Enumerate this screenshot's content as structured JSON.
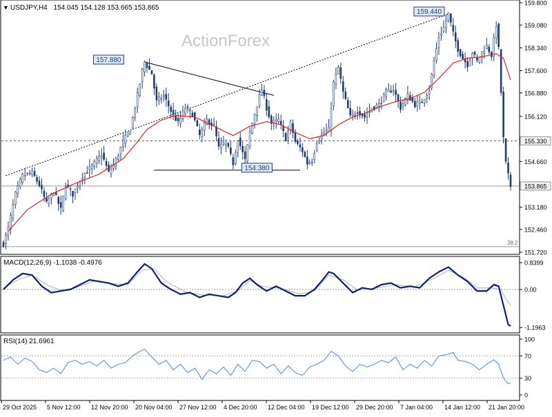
{
  "header": {
    "symbol": "USDJPY,H4",
    "ohlc": "154.045 154.128 153.665 153.865",
    "watermark": "ActionForex"
  },
  "colors": {
    "candles": "#1f3b70",
    "sma": "#e0202a",
    "trendline": "#000000",
    "macd": "#0a1e7a",
    "signal": "#b0b0b0",
    "rsi": "#4a88d8",
    "box_border": "#1f3b70",
    "box_fill": "#dfe8ff"
  },
  "chart_data": [
    {
      "name": "price",
      "type": "candlestick",
      "ylim": [
        151.72,
        159.8
      ],
      "y_ticks": [
        "159.800",
        "159.080",
        "158.340",
        "157.600",
        "156.880",
        "156.120",
        "155.400",
        "154.660",
        "153.920",
        "153.180",
        "152.460",
        "151.720"
      ],
      "x_ticks": [
        "29 Oct 2025",
        "5 Nov 12:00",
        "12 Nov 20:00",
        "20 Nov 04:00",
        "27 Nov 12:00",
        "4 Dec 20:00",
        "12 Dec 04:00",
        "19 Dec 12:00",
        "29 Dec 20:00",
        "7 Jan 04:00",
        "14 Jan 12:00",
        "21 Jan 20:00"
      ],
      "price_path": [
        [
          0,
          152.0
        ],
        [
          2,
          152.5
        ],
        [
          5,
          153.6
        ],
        [
          8,
          154.2
        ],
        [
          12,
          154.3
        ],
        [
          15,
          153.9
        ],
        [
          18,
          153.3
        ],
        [
          21,
          153.7
        ],
        [
          24,
          153.1
        ],
        [
          26,
          153.9
        ],
        [
          29,
          153.6
        ],
        [
          33,
          154.2
        ],
        [
          37,
          154.5
        ],
        [
          41,
          154.9
        ],
        [
          44,
          154.3
        ],
        [
          47,
          154.7
        ],
        [
          50,
          155.3
        ],
        [
          53,
          155.7
        ],
        [
          56,
          156.8
        ],
        [
          58,
          157.6
        ],
        [
          59,
          157.88
        ],
        [
          62,
          157.5
        ],
        [
          64,
          156.6
        ],
        [
          67,
          156.8
        ],
        [
          70,
          156.3
        ],
        [
          73,
          155.9
        ],
        [
          76,
          156.4
        ],
        [
          79,
          156.2
        ],
        [
          82,
          155.5
        ],
        [
          85,
          156.0
        ],
        [
          88,
          155.8
        ],
        [
          90,
          155.1
        ],
        [
          93,
          155.3
        ],
        [
          96,
          154.6
        ],
        [
          98,
          155.4
        ],
        [
          101,
          154.7
        ],
        [
          103,
          155.6
        ],
        [
          106,
          156.5
        ],
        [
          108,
          157.0
        ],
        [
          110,
          156.4
        ],
        [
          112,
          155.9
        ],
        [
          115,
          156.0
        ],
        [
          118,
          155.4
        ],
        [
          120,
          155.9
        ],
        [
          122,
          155.3
        ],
        [
          125,
          155.0
        ],
        [
          127,
          154.6
        ],
        [
          129,
          154.7
        ],
        [
          131,
          155.3
        ],
        [
          134,
          155.6
        ],
        [
          136,
          155.7
        ],
        [
          138,
          157.2
        ],
        [
          140,
          157.7
        ],
        [
          142,
          156.9
        ],
        [
          145,
          156.1
        ],
        [
          148,
          156.3
        ],
        [
          151,
          156.1
        ],
        [
          154,
          156.4
        ],
        [
          157,
          156.5
        ],
        [
          160,
          156.9
        ],
        [
          163,
          157.0
        ],
        [
          166,
          156.4
        ],
        [
          169,
          156.8
        ],
        [
          172,
          156.5
        ],
        [
          175,
          156.6
        ],
        [
          178,
          157.0
        ],
        [
          180,
          157.9
        ],
        [
          182,
          158.7
        ],
        [
          184,
          159.0
        ],
        [
          186,
          159.44
        ],
        [
          188,
          158.8
        ],
        [
          190,
          158.3
        ],
        [
          192,
          158.0
        ],
        [
          194,
          157.8
        ],
        [
          196,
          158.2
        ],
        [
          198,
          157.9
        ],
        [
          200,
          158.2
        ],
        [
          202,
          158.4
        ],
        [
          204,
          158.1
        ],
        [
          206,
          159.1
        ],
        [
          207,
          158.3
        ],
        [
          208,
          156.9
        ],
        [
          209,
          155.4
        ],
        [
          210,
          154.6
        ],
        [
          211,
          154.2
        ],
        [
          212,
          153.865
        ]
      ],
      "sma_path": [
        [
          2,
          152.4
        ],
        [
          10,
          153.1
        ],
        [
          20,
          153.6
        ],
        [
          30,
          153.95
        ],
        [
          40,
          154.25
        ],
        [
          50,
          154.75
        ],
        [
          55,
          155.2
        ],
        [
          60,
          155.7
        ],
        [
          66,
          156.0
        ],
        [
          72,
          156.15
        ],
        [
          80,
          156.1
        ],
        [
          88,
          155.8
        ],
        [
          96,
          155.5
        ],
        [
          103,
          155.8
        ],
        [
          110,
          155.95
        ],
        [
          116,
          155.85
        ],
        [
          122,
          155.6
        ],
        [
          128,
          155.4
        ],
        [
          134,
          155.5
        ],
        [
          140,
          155.85
        ],
        [
          146,
          156.1
        ],
        [
          152,
          156.25
        ],
        [
          158,
          156.45
        ],
        [
          164,
          156.6
        ],
        [
          170,
          156.7
        ],
        [
          176,
          156.9
        ],
        [
          182,
          157.35
        ],
        [
          188,
          157.85
        ],
        [
          194,
          158.0
        ],
        [
          200,
          158.05
        ],
        [
          206,
          158.15
        ],
        [
          209,
          158.0
        ],
        [
          212,
          157.3
        ]
      ],
      "lines": [
        {
          "name": "rising-channel-line",
          "style": "dotted",
          "from": [
            1,
            154.2
          ],
          "to": [
            186,
            159.44
          ]
        },
        {
          "name": "falling-trendline",
          "style": "solid",
          "from": [
            59,
            157.88
          ],
          "to": [
            113,
            156.8
          ]
        },
        {
          "name": "support-line",
          "style": "solid",
          "from": [
            63,
            154.38
          ],
          "to": [
            124,
            154.38
          ]
        },
        {
          "name": "level-155330",
          "style": "dashed",
          "from": [
            0,
            155.33
          ],
          "to": [
            212,
            155.33
          ]
        },
        {
          "name": "level-153865",
          "style": "solid-gray",
          "from": [
            0,
            153.865
          ],
          "to": [
            212,
            153.865
          ]
        },
        {
          "name": "level-38-2",
          "style": "solid-gray",
          "from": [
            0,
            151.9
          ],
          "to": [
            212,
            151.9
          ]
        }
      ],
      "boxed_labels": [
        {
          "text": "157.880",
          "x": 48,
          "y": 157.88,
          "anchor": "right"
        },
        {
          "text": "154.380",
          "x": 110,
          "y": 154.38,
          "anchor": "right"
        },
        {
          "text": "159.440",
          "x": 182,
          "y": 159.44,
          "anchor": "right"
        }
      ],
      "axis_tags": [
        {
          "text": "155.330",
          "y": 155.33,
          "style": "light"
        },
        {
          "text": "153.865",
          "y": 153.865,
          "style": "light"
        }
      ],
      "fib_label": "38.2"
    },
    {
      "name": "macd",
      "type": "line",
      "title": "MACD(12,26,9) -1.1038 -0.4976",
      "ylim": [
        -1.3,
        0.95
      ],
      "y_ticks": [
        "0.8399",
        "0.00",
        "-1.1963"
      ],
      "macd_path": [
        [
          0,
          0.0
        ],
        [
          4,
          0.3
        ],
        [
          8,
          0.5
        ],
        [
          12,
          0.45
        ],
        [
          16,
          0.1
        ],
        [
          20,
          -0.1
        ],
        [
          24,
          -0.05
        ],
        [
          28,
          0.0
        ],
        [
          32,
          0.15
        ],
        [
          36,
          0.3
        ],
        [
          40,
          0.25
        ],
        [
          44,
          0.2
        ],
        [
          48,
          0.1
        ],
        [
          52,
          0.2
        ],
        [
          56,
          0.55
        ],
        [
          59,
          0.8
        ],
        [
          62,
          0.65
        ],
        [
          66,
          0.2
        ],
        [
          70,
          0.0
        ],
        [
          74,
          -0.15
        ],
        [
          78,
          -0.1
        ],
        [
          82,
          -0.25
        ],
        [
          86,
          -0.15
        ],
        [
          90,
          -0.2
        ],
        [
          94,
          -0.25
        ],
        [
          97,
          -0.1
        ],
        [
          100,
          0.2
        ],
        [
          103,
          0.35
        ],
        [
          106,
          0.15
        ],
        [
          110,
          -0.05
        ],
        [
          114,
          0.1
        ],
        [
          118,
          -0.05
        ],
        [
          122,
          -0.2
        ],
        [
          126,
          -0.2
        ],
        [
          130,
          0.0
        ],
        [
          134,
          0.35
        ],
        [
          136,
          0.55
        ],
        [
          138,
          0.5
        ],
        [
          142,
          0.2
        ],
        [
          146,
          -0.1
        ],
        [
          150,
          0.05
        ],
        [
          154,
          0.0
        ],
        [
          158,
          0.15
        ],
        [
          162,
          0.2
        ],
        [
          166,
          0.05
        ],
        [
          170,
          0.1
        ],
        [
          174,
          0.05
        ],
        [
          178,
          0.35
        ],
        [
          182,
          0.55
        ],
        [
          186,
          0.7
        ],
        [
          190,
          0.45
        ],
        [
          194,
          0.25
        ],
        [
          198,
          -0.05
        ],
        [
          202,
          -0.05
        ],
        [
          205,
          0.15
        ],
        [
          207,
          0.1
        ],
        [
          209,
          -0.5
        ],
        [
          211,
          -1.1
        ],
        [
          212,
          -1.15
        ]
      ],
      "signal_path": [
        [
          0,
          0.05
        ],
        [
          6,
          0.3
        ],
        [
          12,
          0.45
        ],
        [
          18,
          0.15
        ],
        [
          24,
          -0.03
        ],
        [
          30,
          0.05
        ],
        [
          38,
          0.27
        ],
        [
          46,
          0.18
        ],
        [
          52,
          0.15
        ],
        [
          58,
          0.6
        ],
        [
          63,
          0.65
        ],
        [
          68,
          0.25
        ],
        [
          76,
          -0.08
        ],
        [
          84,
          -0.18
        ],
        [
          92,
          -0.2
        ],
        [
          98,
          -0.05
        ],
        [
          103,
          0.28
        ],
        [
          108,
          0.1
        ],
        [
          116,
          0.03
        ],
        [
          124,
          -0.15
        ],
        [
          130,
          -0.05
        ],
        [
          136,
          0.45
        ],
        [
          142,
          0.3
        ],
        [
          148,
          -0.02
        ],
        [
          156,
          0.05
        ],
        [
          164,
          0.15
        ],
        [
          172,
          0.08
        ],
        [
          180,
          0.35
        ],
        [
          186,
          0.6
        ],
        [
          192,
          0.4
        ],
        [
          198,
          0.05
        ],
        [
          204,
          0.05
        ],
        [
          208,
          0.0
        ],
        [
          210,
          -0.3
        ],
        [
          212,
          -0.5
        ]
      ]
    },
    {
      "name": "rsi",
      "type": "line",
      "title": "RSI(14) 21.6961",
      "ylim": [
        0,
        100
      ],
      "y_ticks": [
        "100",
        "70",
        "30",
        "0"
      ],
      "rsi_path": [
        [
          0,
          62
        ],
        [
          3,
          68
        ],
        [
          6,
          55
        ],
        [
          9,
          66
        ],
        [
          12,
          60
        ],
        [
          15,
          45
        ],
        [
          18,
          40
        ],
        [
          21,
          48
        ],
        [
          24,
          38
        ],
        [
          27,
          58
        ],
        [
          30,
          62
        ],
        [
          33,
          55
        ],
        [
          36,
          60
        ],
        [
          39,
          52
        ],
        [
          42,
          62
        ],
        [
          45,
          48
        ],
        [
          48,
          55
        ],
        [
          51,
          58
        ],
        [
          54,
          70
        ],
        [
          57,
          78
        ],
        [
          59,
          82
        ],
        [
          62,
          68
        ],
        [
          65,
          55
        ],
        [
          68,
          62
        ],
        [
          71,
          45
        ],
        [
          74,
          55
        ],
        [
          77,
          40
        ],
        [
          80,
          48
        ],
        [
          83,
          28
        ],
        [
          86,
          45
        ],
        [
          89,
          38
        ],
        [
          92,
          50
        ],
        [
          95,
          35
        ],
        [
          98,
          55
        ],
        [
          101,
          42
        ],
        [
          104,
          62
        ],
        [
          107,
          60
        ],
        [
          110,
          48
        ],
        [
          113,
          55
        ],
        [
          116,
          38
        ],
        [
          119,
          52
        ],
        [
          122,
          40
        ],
        [
          125,
          35
        ],
        [
          128,
          50
        ],
        [
          131,
          55
        ],
        [
          134,
          62
        ],
        [
          137,
          78
        ],
        [
          140,
          70
        ],
        [
          143,
          52
        ],
        [
          146,
          42
        ],
        [
          149,
          55
        ],
        [
          152,
          50
        ],
        [
          155,
          55
        ],
        [
          158,
          62
        ],
        [
          161,
          58
        ],
        [
          164,
          68
        ],
        [
          167,
          45
        ],
        [
          170,
          55
        ],
        [
          173,
          48
        ],
        [
          176,
          62
        ],
        [
          179,
          52
        ],
        [
          182,
          70
        ],
        [
          185,
          72
        ],
        [
          188,
          76
        ],
        [
          190,
          62
        ],
        [
          193,
          60
        ],
        [
          196,
          55
        ],
        [
          199,
          45
        ],
        [
          202,
          55
        ],
        [
          205,
          63
        ],
        [
          207,
          55
        ],
        [
          209,
          30
        ],
        [
          211,
          20
        ],
        [
          212,
          22
        ]
      ]
    }
  ]
}
